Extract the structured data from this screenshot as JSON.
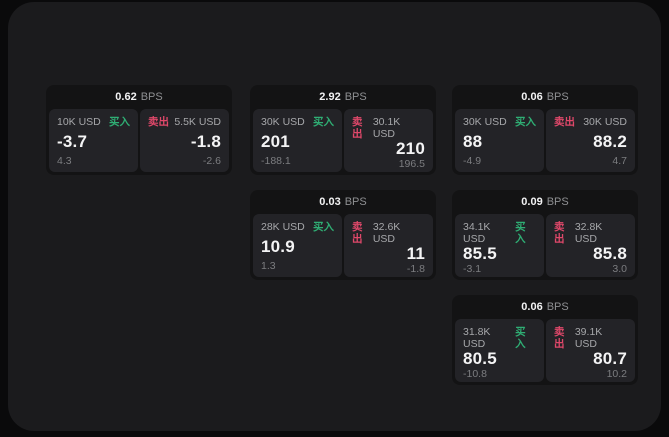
{
  "colors": {
    "buy_green": "#2fae74",
    "sell_red": "#e0486a",
    "frame_bg": "#1b1b1d",
    "card_bg": "#131314",
    "panel_bg": "#232327"
  },
  "cards": [
    {
      "bps_value": "0.62",
      "bps_unit": "BPS",
      "buy": {
        "size": "10K USD",
        "side_label": "买入",
        "value": "-3.7",
        "delta": "4.3"
      },
      "sell": {
        "size": "5.5K USD",
        "side_label": "卖出",
        "value": "-1.8",
        "delta": "-2.6"
      }
    },
    {
      "bps_value": "2.92",
      "bps_unit": "BPS",
      "buy": {
        "size": "30K USD",
        "side_label": "买入",
        "value": "201",
        "delta": "-188.1"
      },
      "sell": {
        "size": "30.1K USD",
        "side_label": "卖出",
        "value": "210",
        "delta": "196.5"
      }
    },
    {
      "bps_value": "0.06",
      "bps_unit": "BPS",
      "buy": {
        "size": "30K USD",
        "side_label": "买入",
        "value": "88",
        "delta": "-4.9"
      },
      "sell": {
        "size": "30K USD",
        "side_label": "卖出",
        "value": "88.2",
        "delta": "4.7"
      }
    },
    {
      "bps_value": "0.03",
      "bps_unit": "BPS",
      "buy": {
        "size": "28K USD",
        "side_label": "买入",
        "value": "10.9",
        "delta": "1.3"
      },
      "sell": {
        "size": "32.6K USD",
        "side_label": "卖出",
        "value": "11",
        "delta": "-1.8"
      }
    },
    {
      "bps_value": "0.09",
      "bps_unit": "BPS",
      "buy": {
        "size": "34.1K USD",
        "side_label": "买入",
        "value": "85.5",
        "delta": "-3.1"
      },
      "sell": {
        "size": "32.8K USD",
        "side_label": "卖出",
        "value": "85.8",
        "delta": "3.0"
      }
    },
    {
      "bps_value": "0.06",
      "bps_unit": "BPS",
      "buy": {
        "size": "31.8K USD",
        "side_label": "买入",
        "value": "80.5",
        "delta": "-10.8"
      },
      "sell": {
        "size": "39.1K USD",
        "side_label": "卖出",
        "value": "80.7",
        "delta": "10.2"
      }
    }
  ]
}
